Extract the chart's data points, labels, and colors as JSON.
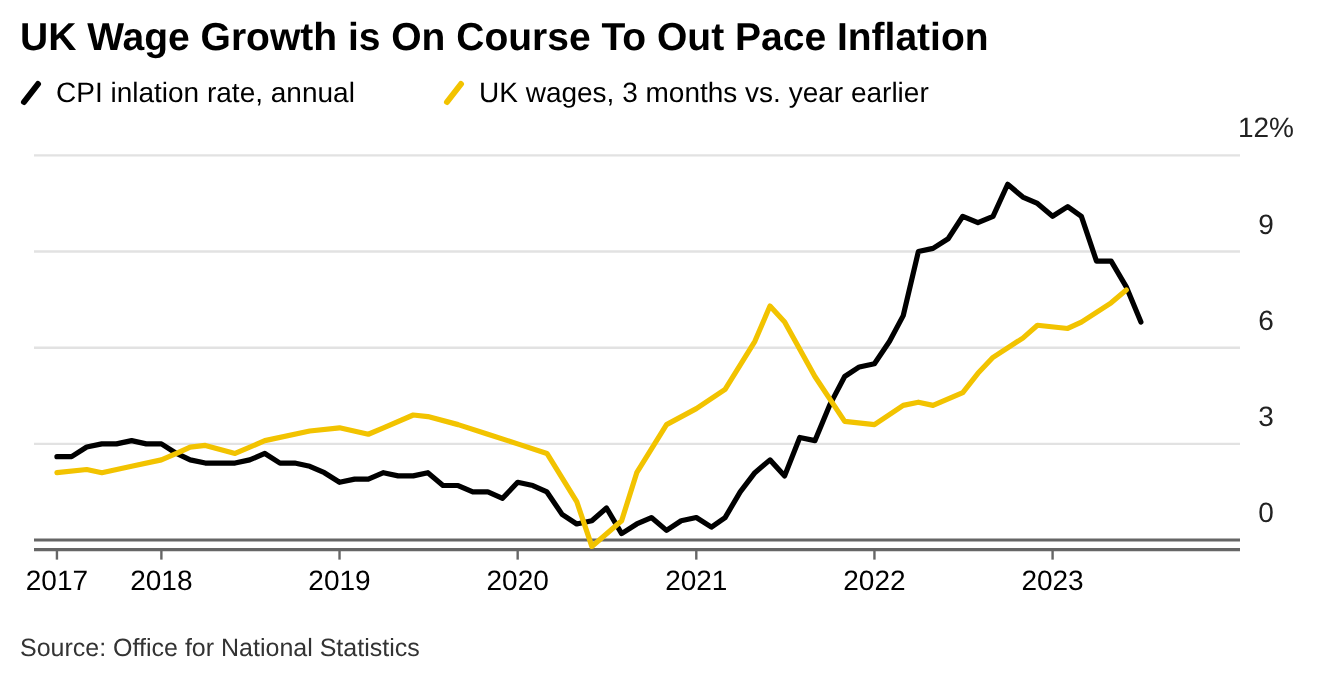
{
  "chart_data": {
    "type": "line",
    "title": "UK Wage Growth is On Course To Out Pace Inflation",
    "annotations": [
      "Source: Office for National Statistics"
    ],
    "legend": "top left",
    "grid": "y",
    "xlim": [
      "2017-04-15",
      "2024-01-20"
    ],
    "ylim": [
      -0.3,
      12
    ],
    "xticks": [
      {
        "value": "2017-06",
        "label": "2017"
      },
      {
        "value": "2018-01",
        "label": "2018"
      },
      {
        "value": "2019-01",
        "label": "2019"
      },
      {
        "value": "2020-01",
        "label": "2020"
      },
      {
        "value": "2021-01",
        "label": "2021"
      },
      {
        "value": "2022-01",
        "label": "2022"
      },
      {
        "value": "2023-01",
        "label": "2023"
      }
    ],
    "yticks": [
      0,
      3,
      6,
      9,
      {
        "value": 12,
        "label": "12%"
      }
    ],
    "series": [
      {
        "name": "CPI inlation rate, annual",
        "color": "#000000",
        "x": [
          "2017-06",
          "2017-07",
          "2017-08",
          "2017-09",
          "2017-10",
          "2017-11",
          "2017-12",
          "2018-01",
          "2018-02",
          "2018-03",
          "2018-04",
          "2018-05",
          "2018-06",
          "2018-07",
          "2018-08",
          "2018-09",
          "2018-10",
          "2018-11",
          "2018-12",
          "2019-01",
          "2019-02",
          "2019-03",
          "2019-04",
          "2019-05",
          "2019-06",
          "2019-07",
          "2019-08",
          "2019-09",
          "2019-10",
          "2019-11",
          "2019-12",
          "2020-01",
          "2020-02",
          "2020-03",
          "2020-04",
          "2020-05",
          "2020-06",
          "2020-07",
          "2020-08",
          "2020-09",
          "2020-10",
          "2020-11",
          "2020-12",
          "2021-01",
          "2021-02",
          "2021-03",
          "2021-04",
          "2021-05",
          "2021-06",
          "2021-07",
          "2021-08",
          "2021-09",
          "2021-10",
          "2021-11",
          "2021-12",
          "2022-01",
          "2022-02",
          "2022-03",
          "2022-04",
          "2022-05",
          "2022-06",
          "2022-07",
          "2022-08",
          "2022-09",
          "2022-10",
          "2022-11",
          "2022-12",
          "2023-01",
          "2023-02",
          "2023-03",
          "2023-04",
          "2023-05",
          "2023-06",
          "2023-07"
        ],
        "values": [
          2.6,
          2.6,
          2.9,
          3.0,
          3.0,
          3.1,
          3.0,
          3.0,
          2.7,
          2.5,
          2.4,
          2.4,
          2.4,
          2.5,
          2.7,
          2.4,
          2.4,
          2.3,
          2.1,
          1.8,
          1.9,
          1.9,
          2.1,
          2.0,
          2.0,
          2.1,
          1.7,
          1.7,
          1.5,
          1.5,
          1.3,
          1.8,
          1.7,
          1.5,
          0.8,
          0.5,
          0.6,
          1.0,
          0.2,
          0.5,
          0.7,
          0.3,
          0.6,
          0.7,
          0.4,
          0.7,
          1.5,
          2.1,
          2.5,
          2.0,
          3.2,
          3.1,
          4.2,
          5.1,
          5.4,
          5.5,
          6.2,
          7.0,
          9.0,
          9.1,
          9.4,
          10.1,
          9.9,
          10.1,
          11.1,
          10.7,
          10.5,
          10.1,
          10.4,
          10.1,
          8.7,
          8.7,
          7.9,
          6.8
        ]
      },
      {
        "name": "UK wages, 3 months vs. year earlier",
        "color": "#f2c300",
        "x": [
          "2017-06",
          "2017-08",
          "2017-09",
          "2017-11",
          "2018-01",
          "2018-02",
          "2018-03",
          "2018-04",
          "2018-06",
          "2018-08",
          "2018-11",
          "2019-01",
          "2019-03",
          "2019-04",
          "2019-06",
          "2019-07",
          "2019-09",
          "2019-11",
          "2020-01",
          "2020-03",
          "2020-05",
          "2020-06",
          "2020-08",
          "2020-09",
          "2020-11",
          "2021-01",
          "2021-03",
          "2021-05",
          "2021-06",
          "2021-07",
          "2021-09",
          "2021-11",
          "2022-01",
          "2022-03",
          "2022-04",
          "2022-05",
          "2022-07",
          "2022-08",
          "2022-09",
          "2022-11",
          "2022-12",
          "2023-02",
          "2023-03",
          "2023-05",
          "2023-06"
        ],
        "values": [
          2.1,
          2.2,
          2.1,
          2.3,
          2.5,
          2.7,
          2.9,
          2.95,
          2.7,
          3.1,
          3.4,
          3.5,
          3.3,
          3.5,
          3.9,
          3.85,
          3.6,
          3.3,
          3.0,
          2.7,
          1.2,
          -0.2,
          0.6,
          2.1,
          3.6,
          4.1,
          4.7,
          6.2,
          7.3,
          6.8,
          5.1,
          3.7,
          3.6,
          4.2,
          4.3,
          4.2,
          4.6,
          5.2,
          5.7,
          6.3,
          6.7,
          6.6,
          6.8,
          7.4,
          7.8
        ]
      }
    ]
  }
}
